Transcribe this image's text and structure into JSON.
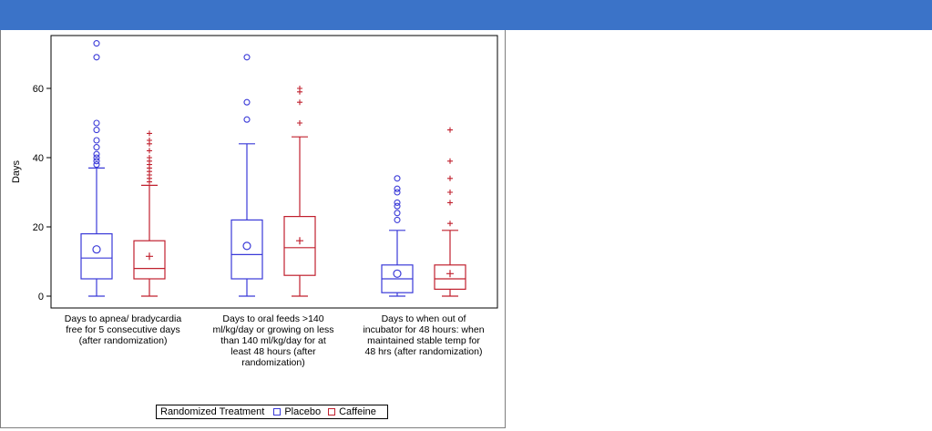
{
  "chart_data": {
    "type": "box",
    "ylabel": "Days",
    "ylim": [
      -3,
      75
    ],
    "yticks": [
      0,
      20,
      40,
      60
    ],
    "grid": false,
    "legend_position": "bottom",
    "legend_title": "Randomized Treatment",
    "categories": [
      [
        "Days to apnea/ bradycardia",
        "free for 5 consecutive days",
        "(after randomization)"
      ],
      [
        "Days to oral feeds >140",
        "ml/kg/day or growing on less",
        "than 140 ml/kg/day for at",
        "least 48 hours (after",
        "randomization)"
      ],
      [
        "Days to when out of",
        "incubator for 48 hours: when",
        "maintained stable temp for",
        "48 hrs (after randomization)"
      ]
    ],
    "series": [
      {
        "name": "Placebo",
        "color": "#3a3ad8",
        "mean_marker": "circle",
        "boxes": [
          {
            "min": 0,
            "q1": 5,
            "median": 11,
            "q3": 18,
            "max": 37,
            "mean": 13.5,
            "outliers": [
              38,
              39,
              40,
              41,
              43,
              45,
              48,
              50,
              69,
              73
            ]
          },
          {
            "min": 0,
            "q1": 5,
            "median": 12,
            "q3": 22,
            "max": 44,
            "mean": 14.5,
            "outliers": [
              51,
              56,
              69
            ]
          },
          {
            "min": 0,
            "q1": 1,
            "median": 5,
            "q3": 9,
            "max": 19,
            "mean": 6.5,
            "outliers": [
              22,
              24,
              26,
              27,
              30,
              31,
              34
            ]
          }
        ]
      },
      {
        "name": "Caffeine",
        "color": "#c0202e",
        "mean_marker": "plus",
        "boxes": [
          {
            "min": 0,
            "q1": 5,
            "median": 8,
            "q3": 16,
            "max": 32,
            "mean": 11.5,
            "outliers": [
              33,
              34,
              35,
              36,
              37,
              38,
              39,
              40,
              42,
              44,
              45,
              47
            ]
          },
          {
            "min": 0,
            "q1": 6,
            "median": 14,
            "q3": 23,
            "max": 46,
            "mean": 16,
            "outliers": [
              50,
              56,
              59,
              60
            ]
          },
          {
            "min": 0,
            "q1": 2,
            "median": 5,
            "q3": 9,
            "max": 19,
            "mean": 6.5,
            "outliers": [
              21,
              27,
              30,
              34,
              39,
              48
            ]
          }
        ]
      }
    ]
  }
}
